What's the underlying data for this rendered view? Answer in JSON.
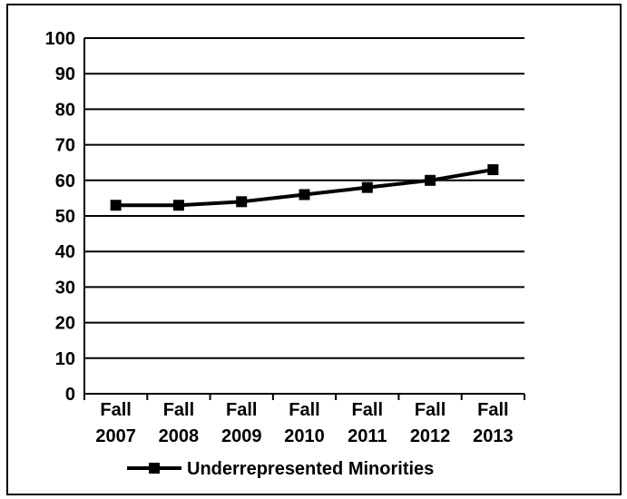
{
  "chart_data": {
    "type": "line",
    "title": "",
    "xlabel": "",
    "ylabel": "",
    "ylim": [
      0,
      100
    ],
    "yticks": [
      0,
      10,
      20,
      30,
      40,
      50,
      60,
      70,
      80,
      90,
      100
    ],
    "categories": [
      [
        "Fall",
        "2007"
      ],
      [
        "Fall",
        "2008"
      ],
      [
        "Fall",
        "2009"
      ],
      [
        "Fall",
        "2010"
      ],
      [
        "Fall",
        "2011"
      ],
      [
        "Fall",
        "2012"
      ],
      [
        "Fall",
        "2013"
      ]
    ],
    "series": [
      {
        "name": "Underrepresented Minorities",
        "values": [
          53,
          53,
          54,
          56,
          58,
          60,
          63
        ],
        "color": "#000000",
        "marker": "square"
      }
    ],
    "grid": true,
    "legend_position": "bottom-center"
  }
}
